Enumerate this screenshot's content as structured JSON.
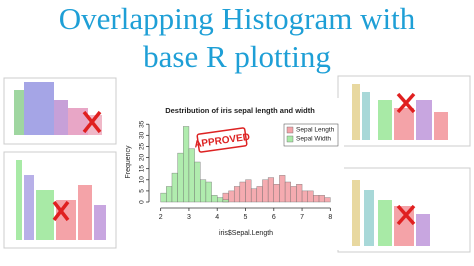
{
  "header": {
    "title_line1": "Overlapping Histogram with",
    "title_line2": "base R plotting",
    "stamp": "APPROVED"
  },
  "chart_data": {
    "type": "histogram",
    "title": "Destribution of iris sepal length and width",
    "x_label": "iris$Sepal.Length",
    "y_label": "Frequency",
    "xlim": [
      1.8,
      8.2
    ],
    "ylim": [
      0,
      36
    ],
    "xticks": [
      2,
      3,
      4,
      5,
      6,
      7,
      8
    ],
    "yticks": [
      0,
      5,
      10,
      15,
      20,
      25,
      30,
      35
    ],
    "legend": "top-right",
    "series": [
      {
        "name": "Sepal Length",
        "color": "#f4a3a8",
        "bins": [
          4.2,
          4.4,
          4.6,
          4.8,
          5.0,
          5.2,
          5.4,
          5.6,
          5.8,
          6.0,
          6.2,
          6.4,
          6.6,
          6.8,
          7.0,
          7.2,
          7.4,
          7.6,
          7.8,
          8.0
        ],
        "values": [
          4,
          5,
          7,
          9,
          10,
          6,
          7,
          10,
          11,
          8,
          12,
          9,
          7,
          8,
          5,
          5,
          3,
          3,
          2
        ]
      },
      {
        "name": "Sepal Width",
        "color": "#a8eaa6",
        "bins": [
          2.0,
          2.2,
          2.4,
          2.6,
          2.8,
          3.0,
          3.2,
          3.4,
          3.6,
          3.8,
          4.0,
          4.2,
          4.4
        ],
        "values": [
          4,
          7,
          13,
          22,
          34,
          24,
          18,
          10,
          9,
          3,
          2,
          1
        ]
      }
    ]
  }
}
